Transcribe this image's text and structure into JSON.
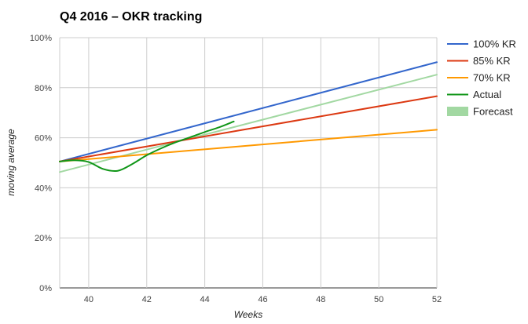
{
  "chart_data": {
    "type": "line",
    "title": "Q4 2016 – OKR tracking",
    "xlabel": "Weeks",
    "ylabel": "moving average",
    "xlim": [
      39,
      52
    ],
    "ylim": [
      0,
      100
    ],
    "x_ticks": [
      40,
      42,
      44,
      46,
      48,
      50,
      52
    ],
    "y_ticks": [
      0,
      20,
      40,
      60,
      80,
      100
    ],
    "y_tick_labels": [
      "0%",
      "20%",
      "40%",
      "60%",
      "80%",
      "100%"
    ],
    "grid": true,
    "legend_position": "right",
    "series": [
      {
        "name": "100% KR",
        "color": "#3366cc",
        "x": [
          39,
          52
        ],
        "y": [
          50.5,
          90.2
        ]
      },
      {
        "name": "85% KR",
        "color": "#dc3912",
        "x": [
          39,
          52
        ],
        "y": [
          50.5,
          76.6
        ]
      },
      {
        "name": "70% KR",
        "color": "#ff9900",
        "x": [
          39,
          52
        ],
        "y": [
          50.5,
          63.2
        ]
      },
      {
        "name": "Actual",
        "color": "#109618",
        "smooth": true,
        "x": [
          39,
          39.5,
          40,
          40.5,
          41,
          41.5,
          42,
          42.5,
          43,
          43.5,
          44,
          44.5,
          45
        ],
        "y": [
          50.5,
          51,
          50.3,
          47.5,
          46.8,
          49.5,
          53,
          55.8,
          58.2,
          60.2,
          62.3,
          64.2,
          66.5
        ]
      },
      {
        "name": "Forecast",
        "color": "#a2d8a2",
        "x": [
          39,
          52
        ],
        "y": [
          46.3,
          85.2
        ]
      }
    ]
  }
}
